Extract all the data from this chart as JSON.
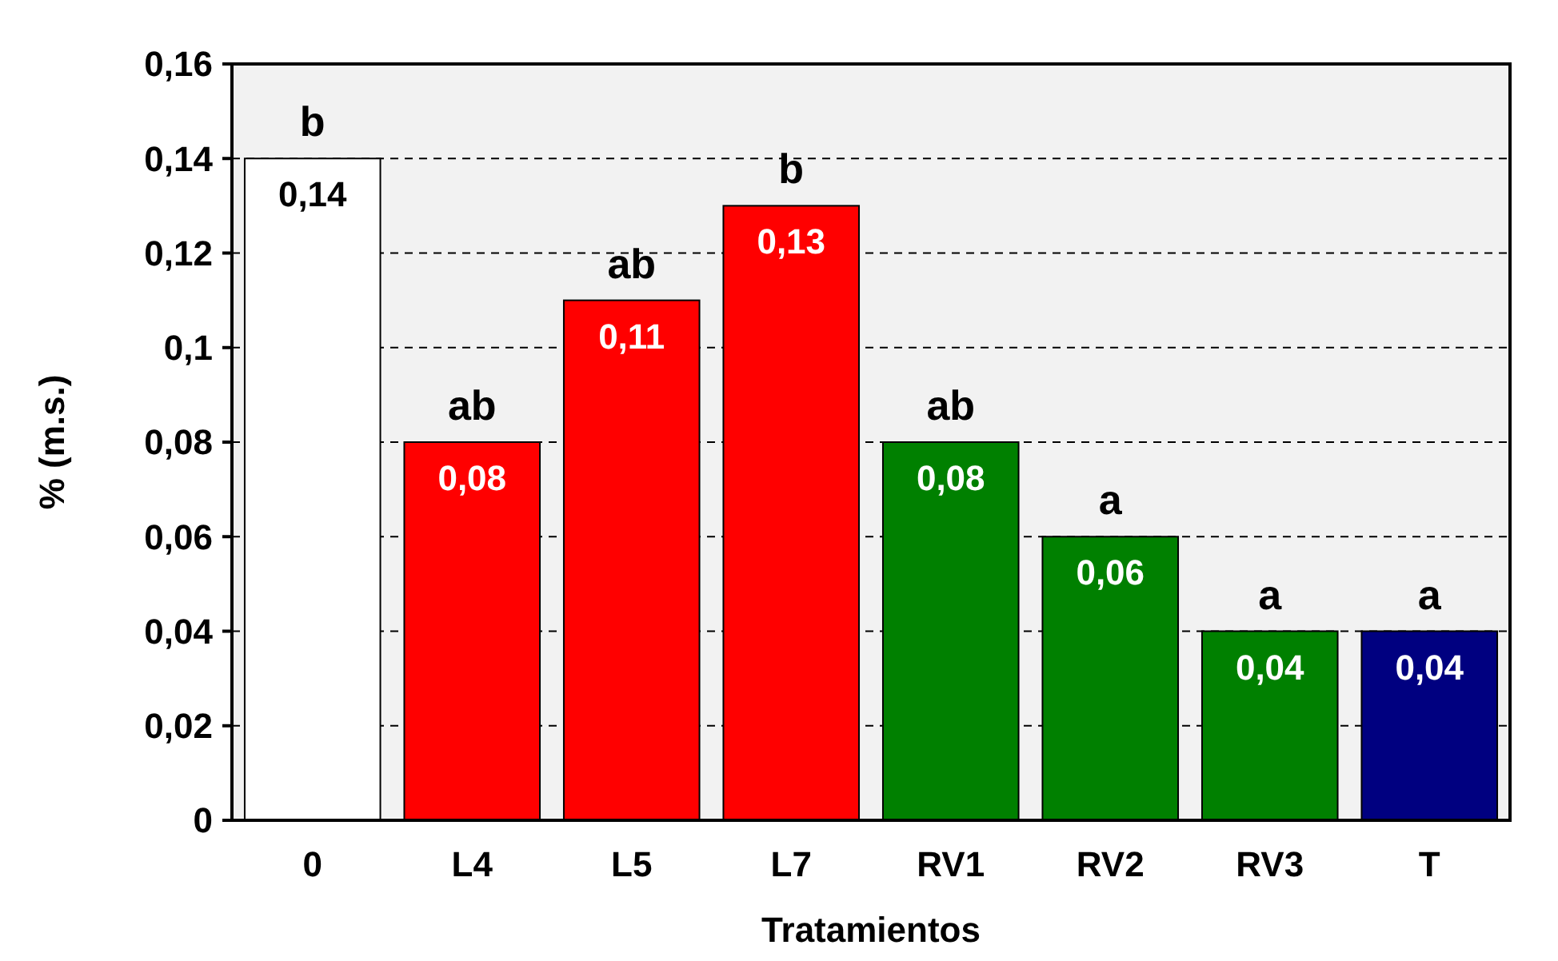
{
  "chart_data": {
    "type": "bar",
    "xlabel": "Tratamientos",
    "ylabel": "% (m.s.)",
    "categories": [
      "0",
      "L4",
      "L5",
      "L7",
      "RV1",
      "RV2",
      "RV3",
      "T"
    ],
    "values": [
      0.14,
      0.08,
      0.11,
      0.13,
      0.08,
      0.06,
      0.04,
      0.04
    ],
    "colors": [
      "#ffffff",
      "#ff0000",
      "#ff0000",
      "#ff0000",
      "#008000",
      "#008000",
      "#008000",
      "#000080"
    ],
    "value_labels": [
      "0,14",
      "0,08",
      "0,11",
      "0,13",
      "0,08",
      "0,06",
      "0,04",
      "0,04"
    ],
    "ylim": [
      0,
      0.16
    ],
    "yticks": [
      {
        "value": 0,
        "label": "0"
      },
      {
        "value": 0.02,
        "label": "0,02"
      },
      {
        "value": 0.04,
        "label": "0,04"
      },
      {
        "value": 0.06,
        "label": "0,06"
      },
      {
        "value": 0.08,
        "label": "0,08"
      },
      {
        "value": 0.1,
        "label": "0,1"
      },
      {
        "value": 0.12,
        "label": "0,12"
      },
      {
        "value": 0.14,
        "label": "0,14"
      },
      {
        "value": 0.16,
        "label": "0,16"
      }
    ],
    "grid": "y",
    "annotations": [
      {
        "text": "b",
        "x": "0",
        "y": 0.14
      },
      {
        "text": "ab",
        "x": "L4",
        "y": 0.08
      },
      {
        "text": "ab",
        "x": "L5",
        "y": 0.11
      },
      {
        "text": "b",
        "x": "L7",
        "y": 0.13
      },
      {
        "text": "ab",
        "x": "RV1",
        "y": 0.08
      },
      {
        "text": "a",
        "x": "RV2",
        "y": 0.06
      },
      {
        "text": "a",
        "x": "RV3",
        "y": 0.04
      },
      {
        "text": "a",
        "x": "T",
        "y": 0.04
      }
    ]
  }
}
